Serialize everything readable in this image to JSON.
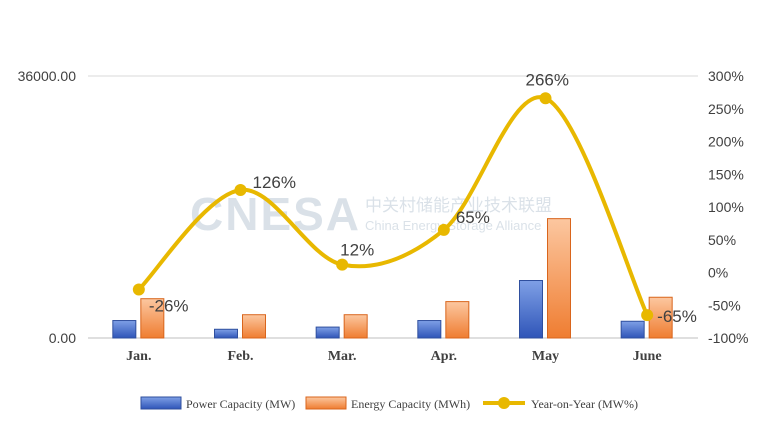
{
  "watermark": {
    "latin": "CNESA",
    "cn": "中关村储能产业技术联盟",
    "en": "China Energy Storage Alliance"
  },
  "chart_data": {
    "type": "bar",
    "categories": [
      "Jan.",
      "Feb.",
      "Mar.",
      "Apr.",
      "May",
      "June"
    ],
    "left_axis": {
      "ylim": [
        0,
        36000
      ],
      "ticks": [
        "0.00",
        "36000.00"
      ]
    },
    "right_axis": {
      "ylim": [
        -100,
        300
      ],
      "ticks": [
        "-100%",
        "-50%",
        "0%",
        "50%",
        "100%",
        "150%",
        "200%",
        "250%",
        "300%"
      ]
    },
    "series": [
      {
        "name": "Power Capacity (MW)",
        "kind": "bar",
        "axis": "left",
        "color_top": "#7fa0e6",
        "color_bottom": "#2f55b8",
        "values": [
          2400,
          1200,
          1500,
          2400,
          7900,
          2300
        ]
      },
      {
        "name": "Energy Capacity (MWh)",
        "kind": "bar",
        "axis": "left",
        "color_top": "#fcc7a0",
        "color_bottom": "#ef7d31",
        "values": [
          5400,
          3200,
          3200,
          5000,
          16400,
          5600
        ]
      },
      {
        "name": "Year-on-Year (MW%)",
        "kind": "line",
        "axis": "right",
        "color": "#e8b800",
        "values": [
          -26,
          126,
          12,
          65,
          266,
          -65
        ],
        "labels": [
          "-26%",
          "126%",
          "12%",
          "65%",
          "266%",
          "-65%"
        ]
      }
    ],
    "legend_position": "bottom",
    "grid": false
  }
}
